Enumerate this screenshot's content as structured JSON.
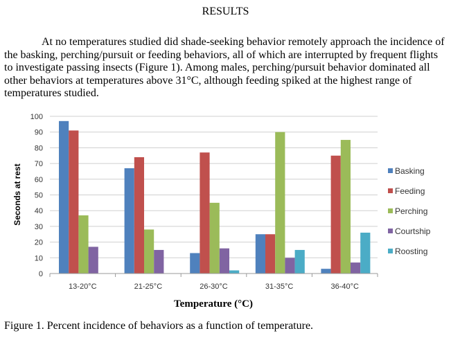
{
  "heading": "RESULTS",
  "paragraph": "At no temperatures studied did shade-seeking behavior remotely approach the incidence of the basking, perching/pursuit or feeding behaviors, all of which are interrupted by frequent flights to investigate passing insects (Figure 1). Among males, perching/pursuit behavior dominated all other behaviors at temperatures above 31°C, although feeding spiked at the highest range of temperatures studied.",
  "caption": "Figure 1. Percent incidence of behaviors as a function of temperature.",
  "chart_data": {
    "type": "bar",
    "title": "",
    "xlabel": "Temperature (°C)",
    "ylabel": "Seconds at rest",
    "ylim": [
      0,
      100
    ],
    "yticks": [
      0,
      10,
      20,
      30,
      40,
      50,
      60,
      70,
      80,
      90,
      100
    ],
    "grid": true,
    "legend_position": "right",
    "categories": [
      "13-20°C",
      "21-25°C",
      "26-30°C",
      "31-35°C",
      "36-40°C"
    ],
    "series": [
      {
        "name": "Basking",
        "color": "#4f81bd",
        "values": [
          97,
          67,
          13,
          25,
          3
        ]
      },
      {
        "name": "Feeding",
        "color": "#c0504d",
        "values": [
          91,
          74,
          77,
          25,
          75
        ]
      },
      {
        "name": "Perching",
        "color": "#9bbb59",
        "values": [
          37,
          28,
          45,
          90,
          85
        ]
      },
      {
        "name": "Courtship",
        "color": "#8064a2",
        "values": [
          17,
          15,
          16,
          10,
          7
        ]
      },
      {
        "name": "Roosting",
        "color": "#4bacc6",
        "values": [
          0,
          0,
          2,
          15,
          26
        ]
      }
    ]
  }
}
